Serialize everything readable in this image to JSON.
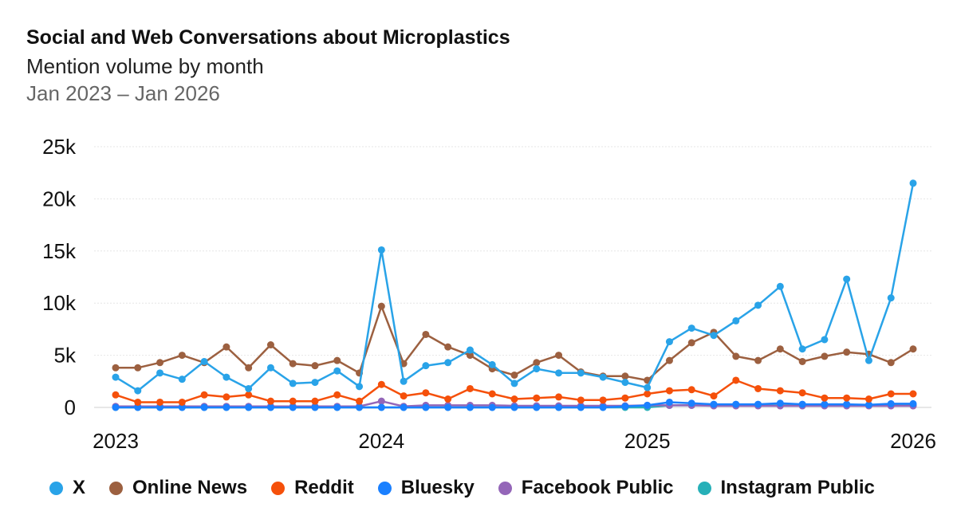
{
  "chart_data": {
    "type": "line",
    "title": "Social and Web Conversations about Microplastics",
    "subtitle": "Mention volume by month",
    "date_range": "Jan 2023 – Jan 2026",
    "x": [
      "2023-01",
      "2023-02",
      "2023-03",
      "2023-04",
      "2023-05",
      "2023-06",
      "2023-07",
      "2023-08",
      "2023-09",
      "2023-10",
      "2023-11",
      "2023-12",
      "2024-01",
      "2024-02",
      "2024-03",
      "2024-04",
      "2024-05",
      "2024-06",
      "2024-07",
      "2024-08",
      "2024-09",
      "2024-10",
      "2024-11",
      "2024-12",
      "2025-01",
      "2025-02",
      "2025-03",
      "2025-04",
      "2025-05",
      "2025-06",
      "2025-07",
      "2025-08",
      "2025-09",
      "2025-10",
      "2025-11",
      "2025-12",
      "2026-01"
    ],
    "xticks": [
      {
        "label": "2023",
        "at": "2023-01"
      },
      {
        "label": "2024",
        "at": "2024-01"
      },
      {
        "label": "2025",
        "at": "2025-01"
      },
      {
        "label": "2026",
        "at": "2026-01"
      }
    ],
    "ylim": [
      0,
      25000
    ],
    "yticks": [
      {
        "label": "0",
        "value": 0
      },
      {
        "label": "5k",
        "value": 5000
      },
      {
        "label": "10k",
        "value": 10000
      },
      {
        "label": "15k",
        "value": 15000
      },
      {
        "label": "20k",
        "value": 20000
      },
      {
        "label": "25k",
        "value": 25000
      }
    ],
    "grid": true,
    "legend_position": "bottom",
    "series": [
      {
        "name": "X",
        "color": "#29a3e8",
        "values": [
          2900,
          1600,
          3300,
          2700,
          4400,
          2900,
          1800,
          3800,
          2300,
          2400,
          3500,
          2000,
          15100,
          2500,
          4000,
          4300,
          5500,
          4100,
          2300,
          3700,
          3300,
          3300,
          2900,
          2400,
          1900,
          6300,
          7600,
          6900,
          8300,
          9800,
          11600,
          5600,
          6500,
          12300,
          4500,
          10500,
          21500
        ]
      },
      {
        "name": "Online News",
        "color": "#9c6040",
        "values": [
          3800,
          3800,
          4300,
          5000,
          4300,
          5800,
          3800,
          6000,
          4200,
          4000,
          4500,
          3300,
          9700,
          4200,
          7000,
          5800,
          5000,
          3700,
          3100,
          4300,
          5000,
          3400,
          3000,
          3000,
          2600,
          4500,
          6200,
          7200,
          4900,
          4500,
          5600,
          4400,
          4900,
          5300,
          5100,
          4300,
          5600
        ]
      },
      {
        "name": "Reddit",
        "color": "#f5500a",
        "values": [
          1200,
          500,
          500,
          500,
          1200,
          1000,
          1200,
          600,
          600,
          600,
          1200,
          600,
          2200,
          1100,
          1400,
          800,
          1800,
          1300,
          800,
          900,
          1000,
          700,
          700,
          900,
          1300,
          1600,
          1700,
          1100,
          2600,
          1800,
          1600,
          1400,
          900,
          900,
          800,
          1300,
          1300
        ]
      },
      {
        "name": "Bluesky",
        "color": "#1a80ff",
        "values": [
          0,
          0,
          0,
          0,
          0,
          0,
          0,
          0,
          0,
          0,
          0,
          0,
          0,
          0,
          0,
          0,
          0,
          0,
          0,
          0,
          0,
          0,
          0,
          100,
          200,
          500,
          400,
          300,
          300,
          300,
          400,
          300,
          300,
          300,
          250,
          350,
          350
        ]
      },
      {
        "name": "Facebook Public",
        "color": "#9466b8",
        "values": [
          100,
          100,
          100,
          100,
          100,
          100,
          100,
          100,
          100,
          100,
          100,
          100,
          600,
          100,
          200,
          200,
          200,
          200,
          150,
          150,
          150,
          150,
          150,
          150,
          200,
          200,
          200,
          150,
          150,
          150,
          150,
          150,
          150,
          150,
          150,
          150,
          150
        ]
      },
      {
        "name": "Instagram Public",
        "color": "#27b0b8",
        "values": [
          0,
          0,
          0,
          0,
          0,
          0,
          0,
          0,
          0,
          0,
          0,
          0,
          0,
          0,
          0,
          0,
          0,
          0,
          0,
          0,
          0,
          0,
          0,
          0,
          0,
          200,
          200,
          200,
          200,
          200,
          200,
          200,
          200,
          200,
          200,
          200,
          200
        ]
      }
    ]
  }
}
